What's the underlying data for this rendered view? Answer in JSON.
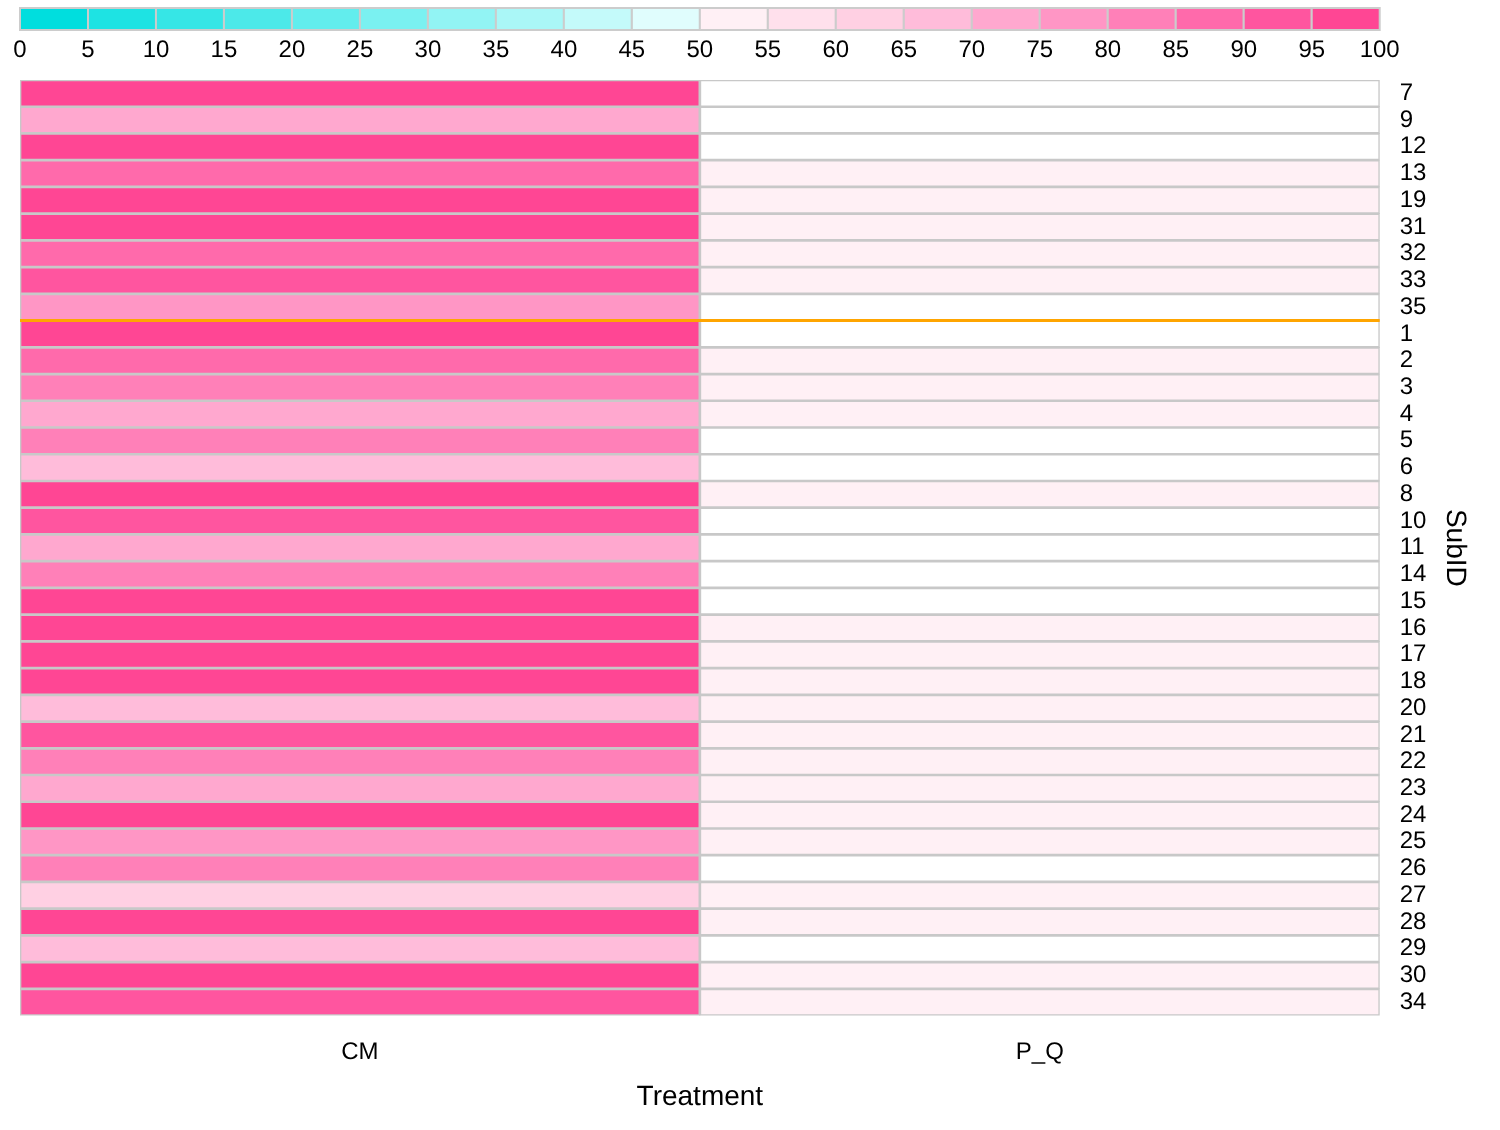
{
  "chart_data": {
    "type": "heatmap",
    "xlabel": "Treatment",
    "ylabel": "SubID",
    "categories": [
      "CM",
      "P_Q"
    ],
    "y_categories": [
      "7",
      "9",
      "12",
      "13",
      "19",
      "31",
      "32",
      "33",
      "35",
      "1",
      "2",
      "3",
      "4",
      "5",
      "6",
      "8",
      "10",
      "11",
      "14",
      "15",
      "16",
      "17",
      "18",
      "20",
      "21",
      "22",
      "23",
      "24",
      "25",
      "26",
      "27",
      "28",
      "29",
      "30",
      "34"
    ],
    "cells": [
      [
        97,
        50
      ],
      [
        72,
        50
      ],
      [
        97,
        50
      ],
      [
        87,
        52
      ],
      [
        97,
        52
      ],
      [
        97,
        52
      ],
      [
        87,
        52
      ],
      [
        92,
        52
      ],
      [
        77,
        50
      ],
      [
        97,
        50
      ],
      [
        87,
        52
      ],
      [
        82,
        52
      ],
      [
        72,
        52
      ],
      [
        82,
        50
      ],
      [
        67,
        50
      ],
      [
        97,
        52
      ],
      [
        92,
        50
      ],
      [
        72,
        50
      ],
      [
        82,
        50
      ],
      [
        97,
        50
      ],
      [
        97,
        52
      ],
      [
        97,
        52
      ],
      [
        97,
        52
      ],
      [
        67,
        52
      ],
      [
        92,
        52
      ],
      [
        82,
        52
      ],
      [
        72,
        52
      ],
      [
        97,
        52
      ],
      [
        77,
        52
      ],
      [
        82,
        50
      ],
      [
        62,
        52
      ],
      [
        97,
        52
      ],
      [
        67,
        50
      ],
      [
        97,
        52
      ],
      [
        92,
        52
      ]
    ],
    "ref_lines": [
      {
        "axis": "y",
        "value": "35",
        "color": "#ffa500"
      }
    ],
    "clim": [
      0,
      100
    ],
    "cticks": [
      0,
      5,
      10,
      15,
      20,
      25,
      30,
      35,
      40,
      45,
      50,
      55,
      60,
      65,
      70,
      75,
      80,
      85,
      90,
      95,
      100
    ]
  }
}
